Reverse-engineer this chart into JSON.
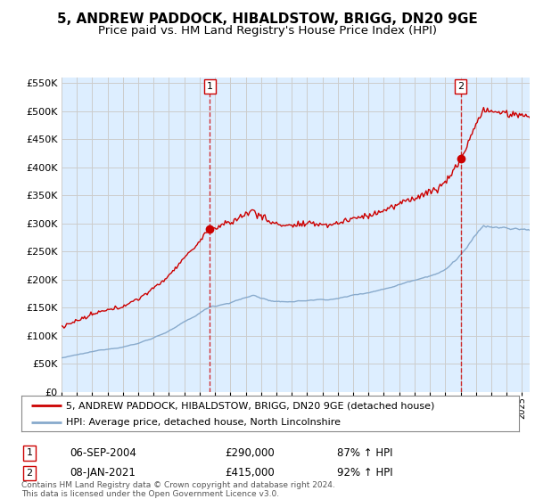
{
  "title": "5, ANDREW PADDOCK, HIBALDSTOW, BRIGG, DN20 9GE",
  "subtitle": "Price paid vs. HM Land Registry's House Price Index (HPI)",
  "ylim": [
    0,
    560000
  ],
  "yticks": [
    0,
    50000,
    100000,
    150000,
    200000,
    250000,
    300000,
    350000,
    400000,
    450000,
    500000,
    550000
  ],
  "xlim_start": 1995.0,
  "xlim_end": 2025.5,
  "sale1_x": 2004.68,
  "sale1_y": 290000,
  "sale1_label": "1",
  "sale2_x": 2021.02,
  "sale2_y": 415000,
  "sale2_label": "2",
  "red_line_color": "#cc0000",
  "blue_line_color": "#88aacc",
  "shade_color": "#ddeeff",
  "legend_line1": "5, ANDREW PADDOCK, HIBALDSTOW, BRIGG, DN20 9GE (detached house)",
  "legend_line2": "HPI: Average price, detached house, North Lincolnshire",
  "annotation1_date": "06-SEP-2004",
  "annotation1_price": "£290,000",
  "annotation1_hpi": "87% ↑ HPI",
  "annotation2_date": "08-JAN-2021",
  "annotation2_price": "£415,000",
  "annotation2_hpi": "92% ↑ HPI",
  "footer": "Contains HM Land Registry data © Crown copyright and database right 2024.\nThis data is licensed under the Open Government Licence v3.0.",
  "background_color": "#ffffff",
  "grid_color": "#cccccc",
  "title_fontsize": 11,
  "subtitle_fontsize": 9.5
}
